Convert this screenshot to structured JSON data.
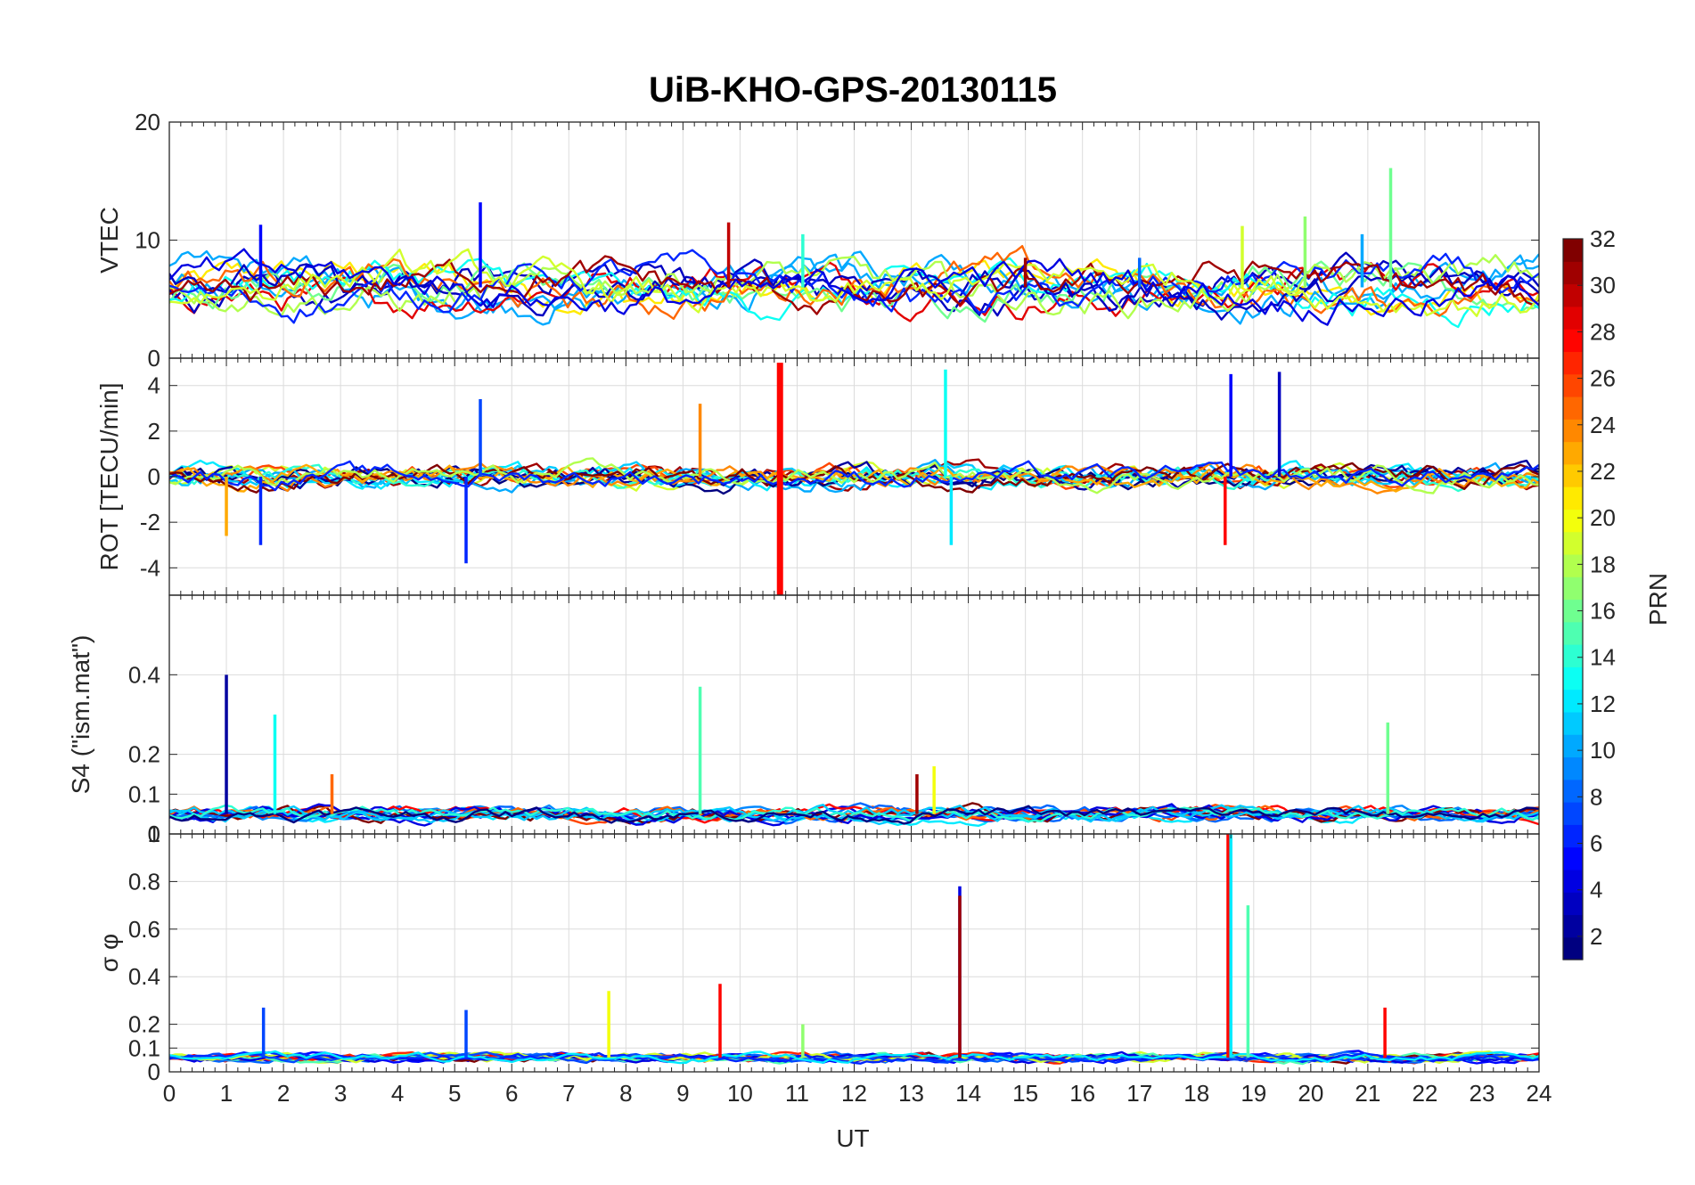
{
  "chart_data": {
    "type": "line",
    "title": "UiB-KHO-GPS-20130115",
    "xlabel": "UT",
    "xlim": [
      0,
      24
    ],
    "x_ticks": [
      "0",
      "1",
      "2",
      "3",
      "4",
      "5",
      "6",
      "7",
      "8",
      "9",
      "10",
      "11",
      "12",
      "13",
      "14",
      "15",
      "16",
      "17",
      "18",
      "19",
      "20",
      "21",
      "22",
      "23",
      "24"
    ],
    "grid": true,
    "colormap": "jet",
    "panels": [
      {
        "ylabel": "VTEC",
        "ylim": [
          0,
          20
        ],
        "y_ticks": [
          "0",
          "10",
          "20"
        ],
        "y_tick_values": [
          0,
          10,
          20
        ],
        "baseline": 6,
        "spikes": [
          [
            1.6,
            11.3,
            5
          ],
          [
            5.45,
            13.2,
            5
          ],
          [
            9.8,
            11.5,
            30
          ],
          [
            11.1,
            10.5,
            14
          ],
          [
            18.8,
            11.2,
            19
          ],
          [
            19.9,
            12,
            17
          ],
          [
            21.4,
            16.1,
            16
          ],
          [
            20.9,
            10.5,
            10
          ],
          [
            15,
            8.5,
            31
          ],
          [
            17,
            8.5,
            8
          ]
        ]
      },
      {
        "ylabel": "ROT [TECU/min]",
        "ylim": [
          -5.2,
          5.2
        ],
        "y_ticks": [
          "-4",
          "-2",
          "0",
          "2",
          "4"
        ],
        "y_tick_values": [
          -4,
          -2,
          0,
          2,
          4
        ],
        "baseline": 0,
        "spikes": [
          [
            10.7,
            5,
            28
          ],
          [
            10.7,
            -5.2,
            28
          ],
          [
            13.6,
            4.7,
            13
          ],
          [
            18.6,
            4.5,
            5
          ],
          [
            19.45,
            4.6,
            3
          ],
          [
            5.45,
            3.4,
            7
          ],
          [
            9.3,
            3.2,
            24
          ],
          [
            5.2,
            -3.8,
            6
          ],
          [
            1.6,
            -3,
            6
          ],
          [
            1.0,
            -2.6,
            23
          ],
          [
            13.7,
            -3,
            12
          ],
          [
            18.5,
            -3.0,
            28
          ]
        ]
      },
      {
        "ylabel": "S4 (\"ism.mat\")",
        "ylim": [
          0,
          0.6
        ],
        "y_ticks": [
          "0.1",
          "0.2",
          "0.4",
          "0"
        ],
        "y_tick_values": [
          0.1,
          0.2,
          0.4,
          0
        ],
        "baseline": 0.05,
        "spikes": [
          [
            1.0,
            0.4,
            2
          ],
          [
            1.85,
            0.3,
            13
          ],
          [
            9.3,
            0.37,
            15
          ],
          [
            21.35,
            0.28,
            16
          ],
          [
            13.1,
            0.15,
            31
          ],
          [
            13.4,
            0.17,
            20
          ],
          [
            2.85,
            0.15,
            25
          ]
        ]
      },
      {
        "ylabel": "σ φ",
        "ylim": [
          0,
          1
        ],
        "y_ticks": [
          "0",
          "0.1",
          "0.2",
          "0.4",
          "0.6",
          "0.8",
          "1"
        ],
        "y_tick_values": [
          0,
          0.1,
          0.2,
          0.4,
          0.6,
          0.8,
          1
        ],
        "baseline": 0.06,
        "spikes": [
          [
            13.85,
            0.78,
            4
          ],
          [
            13.85,
            0.74,
            31
          ],
          [
            18.55,
            1.0,
            28
          ],
          [
            18.6,
            1.0,
            12
          ],
          [
            18.9,
            0.7,
            15
          ],
          [
            9.65,
            0.37,
            28
          ],
          [
            7.7,
            0.34,
            20
          ],
          [
            1.65,
            0.27,
            7
          ],
          [
            21.3,
            0.27,
            28
          ],
          [
            5.2,
            0.26,
            7
          ],
          [
            11.1,
            0.2,
            17
          ]
        ]
      }
    ],
    "colorbar": {
      "label": "PRN",
      "range": [
        1,
        32
      ],
      "ticks": [
        "2",
        "4",
        "6",
        "8",
        "10",
        "12",
        "14",
        "16",
        "18",
        "20",
        "22",
        "24",
        "26",
        "28",
        "30",
        "32"
      ],
      "tick_values": [
        2,
        4,
        6,
        8,
        10,
        12,
        14,
        16,
        18,
        20,
        22,
        24,
        26,
        28,
        30,
        32
      ]
    }
  }
}
